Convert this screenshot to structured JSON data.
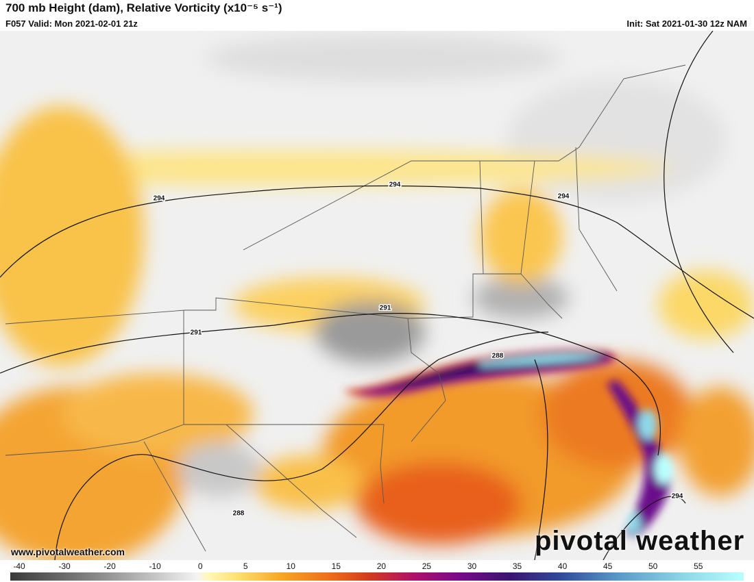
{
  "header": {
    "title": "700 mb Height (dam), Relative Vorticity (x10⁻⁵ s⁻¹)",
    "valid": "F057 Valid: Mon 2021-02-01 21z",
    "init": "Init: Sat 2021-01-30 12z NAM"
  },
  "contour_labels": [
    "294",
    "294",
    "294",
    "291",
    "291",
    "288",
    "288",
    "294"
  ],
  "colorbar": {
    "ticks": [
      -40,
      -30,
      -20,
      -10,
      0,
      5,
      10,
      15,
      20,
      25,
      30,
      35,
      40,
      45,
      50,
      55
    ]
  },
  "footer": {
    "website": "www.pivotalweather.com",
    "logo": "pivotal weather"
  }
}
